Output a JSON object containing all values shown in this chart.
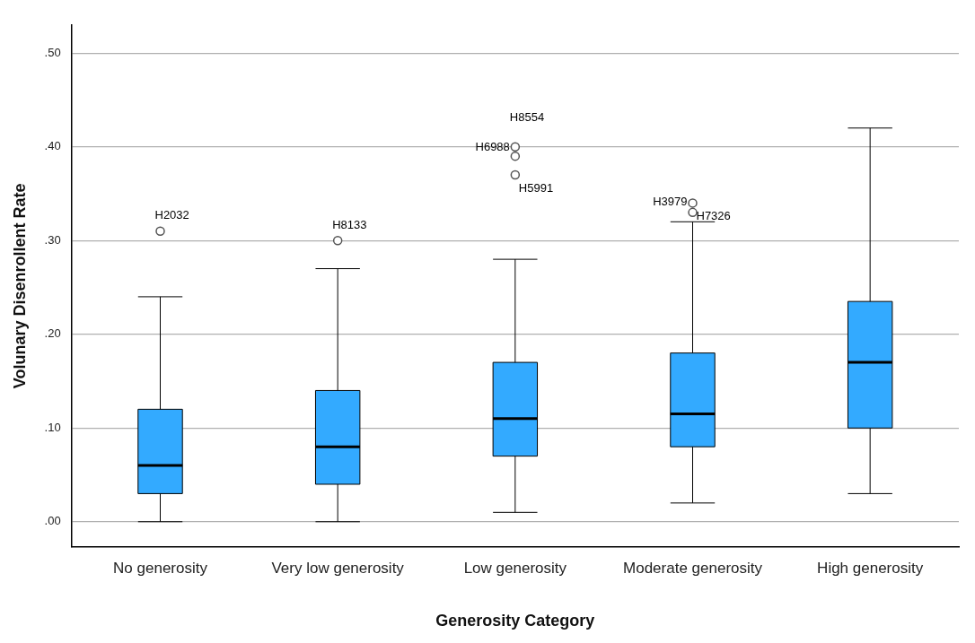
{
  "chart_data": {
    "type": "box",
    "xlabel": "Generosity Category",
    "ylabel": "Volunary Disenrollent Rate",
    "categories": [
      "No generosity",
      "Very low generosity",
      "Low generosity",
      "Moderate generosity",
      "High generosity"
    ],
    "color": "#33aaff",
    "boxes": [
      {
        "low": 0,
        "q1": 0.03,
        "median": 0.06,
        "q3": 0.12,
        "high": 0.24,
        "outliers": [
          0.31
        ]
      },
      {
        "low": 0,
        "q1": 0.04,
        "median": 0.08,
        "q3": 0.14,
        "high": 0.27,
        "outliers": [
          0.3
        ]
      },
      {
        "low": 0.01,
        "q1": 0.07,
        "median": 0.11,
        "q3": 0.17,
        "high": 0.28,
        "outliers": [
          0.4,
          0.39,
          0.37
        ]
      },
      {
        "low": 0.02,
        "q1": 0.08,
        "median": 0.115,
        "q3": 0.18,
        "high": 0.32,
        "outliers": [
          0.34,
          0.33
        ]
      },
      {
        "low": 0.03,
        "q1": 0.1,
        "median": 0.17,
        "q3": 0.235,
        "high": 0.42
      }
    ],
    "ylim": [
      -0.027,
      0.53
    ],
    "yticks": [
      {
        "value": 0,
        "label": ".00"
      },
      {
        "value": 0.1,
        "label": ".10"
      },
      {
        "value": 0.2,
        "label": ".20"
      },
      {
        "value": 0.3,
        "label": ".30"
      },
      {
        "value": 0.4,
        "label": ".40"
      },
      {
        "value": 0.5,
        "label": ".50"
      }
    ],
    "grid": "y",
    "annotations": [
      "H2032",
      "H8133",
      "H8554",
      "H6988",
      "H5991",
      "H3979",
      "H7326"
    ]
  }
}
